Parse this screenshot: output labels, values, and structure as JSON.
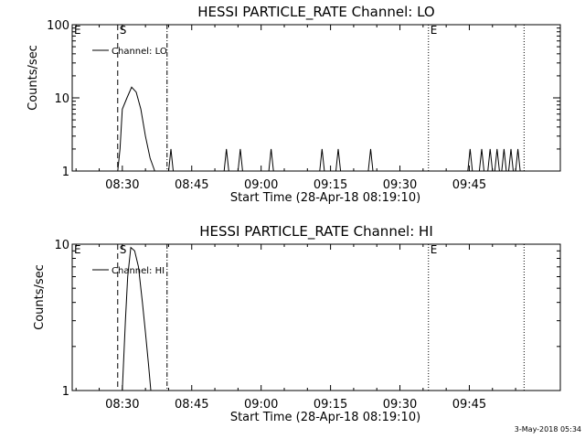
{
  "footer": {
    "timestamp": "3-May-2018 05:34"
  },
  "chart_data": [
    {
      "type": "line",
      "title": "HESSI PARTICLE_RATE Channel: LO",
      "xlabel": "Start Time (28-Apr-18 08:19:10)",
      "ylabel": "Counts/sec",
      "y_scale": "log",
      "ylim": [
        1,
        100
      ],
      "xlim": [
        "08:19:10",
        "10:04:40"
      ],
      "x_tick_labels": [
        "08:30",
        "08:45",
        "09:00",
        "09:15",
        "09:30",
        "09:45"
      ],
      "y_tick_labels": [
        "1",
        "10",
        "100"
      ],
      "legend": {
        "label": "Channel: LO",
        "placement": "top-left"
      },
      "markers": [
        {
          "label": "E",
          "time": "08:19:10",
          "style": "none"
        },
        {
          "label": "S",
          "time": "08:29:00",
          "style": "dashed"
        },
        {
          "label": "",
          "time": "08:39:40",
          "style": "dash-dot"
        },
        {
          "label": "E",
          "time": "09:36:10",
          "style": "dotted"
        },
        {
          "label": "",
          "time": "09:56:50",
          "style": "dotted"
        }
      ],
      "series": [
        {
          "times": [
            "08:29:00",
            "08:29:30",
            "08:30:00",
            "08:31:00",
            "08:32:00",
            "08:33:00",
            "08:34:00",
            "08:35:00",
            "08:36:00",
            "08:37:00",
            "08:40:00",
            "08:40:30",
            "08:41:00",
            "08:52:00",
            "08:52:30",
            "08:53:00",
            "08:55:00",
            "08:55:30",
            "08:56:00",
            "09:01:40",
            "09:02:10",
            "09:02:40",
            "09:12:40",
            "09:13:10",
            "09:13:40",
            "09:16:10",
            "09:16:40",
            "09:17:10",
            "09:23:10",
            "09:23:40",
            "09:24:10",
            "09:44:40",
            "09:45:10",
            "09:45:40",
            "09:47:10",
            "09:47:40",
            "09:48:10",
            "09:49:00",
            "09:49:30",
            "09:50:00",
            "09:50:30",
            "09:51:00",
            "09:51:30",
            "09:52:00",
            "09:52:30",
            "09:53:00",
            "09:53:30",
            "09:54:00",
            "09:54:30",
            "09:55:00",
            "09:55:30",
            "09:56:00"
          ],
          "values": [
            1,
            2,
            7,
            10,
            14,
            12,
            7,
            3,
            1.5,
            1,
            1,
            2,
            1,
            1,
            2,
            1,
            1,
            2,
            1,
            1,
            2,
            1,
            1,
            2,
            1,
            1,
            2,
            1,
            1,
            2,
            1,
            1,
            2,
            1,
            1,
            2,
            1,
            1,
            2,
            1,
            1,
            2,
            1,
            1,
            2,
            1,
            1,
            2,
            1,
            1,
            2,
            1
          ]
        }
      ]
    },
    {
      "type": "line",
      "title": "HESSI PARTICLE_RATE Channel: HI",
      "xlabel": "Start Time (28-Apr-18 08:19:10)",
      "ylabel": "Counts/sec",
      "y_scale": "log",
      "ylim": [
        1,
        10
      ],
      "xlim": [
        "08:19:10",
        "10:04:40"
      ],
      "x_tick_labels": [
        "08:30",
        "08:45",
        "09:00",
        "09:15",
        "09:30",
        "09:45"
      ],
      "y_tick_labels": [
        "1",
        "10"
      ],
      "legend": {
        "label": "Channel: HI",
        "placement": "top-left"
      },
      "markers": [
        {
          "label": "E",
          "time": "08:19:10",
          "style": "none"
        },
        {
          "label": "S",
          "time": "08:29:00",
          "style": "dashed"
        },
        {
          "label": "",
          "time": "08:39:40",
          "style": "dash-dot"
        },
        {
          "label": "E",
          "time": "09:36:10",
          "style": "dotted"
        },
        {
          "label": "",
          "time": "09:56:50",
          "style": "dotted"
        }
      ],
      "series": [
        {
          "times": [
            "08:30:00",
            "08:30:40",
            "08:31:10",
            "08:31:50",
            "08:32:40",
            "08:33:30",
            "08:34:20",
            "08:35:00",
            "08:35:40",
            "08:36:10"
          ],
          "values": [
            1,
            3,
            6,
            9.5,
            9,
            7,
            4,
            2.5,
            1.5,
            1
          ]
        }
      ]
    }
  ]
}
